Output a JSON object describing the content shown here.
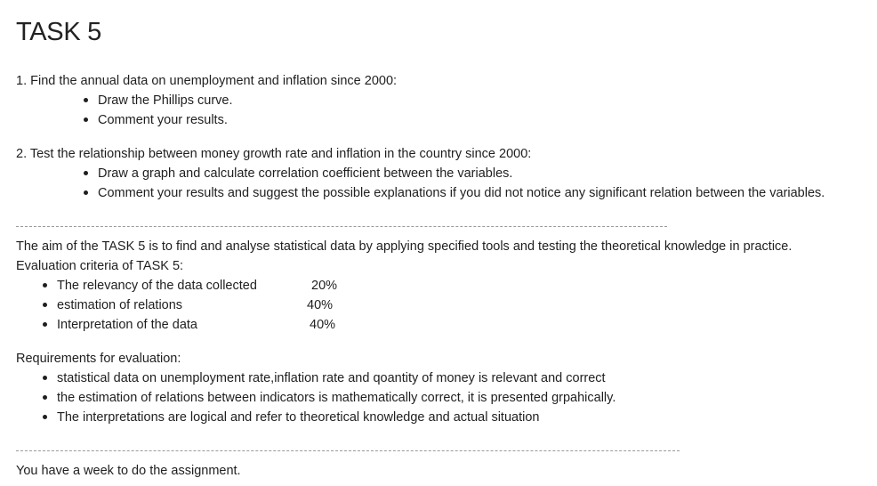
{
  "title": "TASK 5",
  "task1": {
    "heading": "1. Find the annual data on unemployment and inflation since 2000:",
    "bullets": [
      "Draw the Phillips curve.",
      "Comment your results."
    ]
  },
  "task2": {
    "heading": "2. Test the relationship between money growth rate and inflation in the country since 2000:",
    "bullets": [
      "Draw a graph and calculate correlation coefficient between the variables.",
      "Comment your results and suggest the possible explanations if you did not notice any significant relation between the variables."
    ]
  },
  "aim": "The aim of the TASK 5 is to find and analyse statistical data by applying specified tools and testing the theoretical knowledge in practice.",
  "evaluation": {
    "heading": "Evaluation criteria of TASK 5:",
    "criteria": [
      {
        "label": "The relevancy of the data collected",
        "weight": "20%"
      },
      {
        "label": "estimation of relations",
        "weight": "40%"
      },
      {
        "label": "Interpretation of the data",
        "weight": "40%"
      }
    ]
  },
  "requirements": {
    "heading": "Requirements for evaluation:",
    "items": [
      "statistical data on unemployment rate,inflation rate and qoantity of money is relevant and correct",
      "the estimation of relations between indicators is mathematically correct, it is presented grpahically.",
      "The interpretations are logical and refer to theoretical knowledge and actual situation"
    ]
  },
  "deadline": "You have a week to do the assignment."
}
